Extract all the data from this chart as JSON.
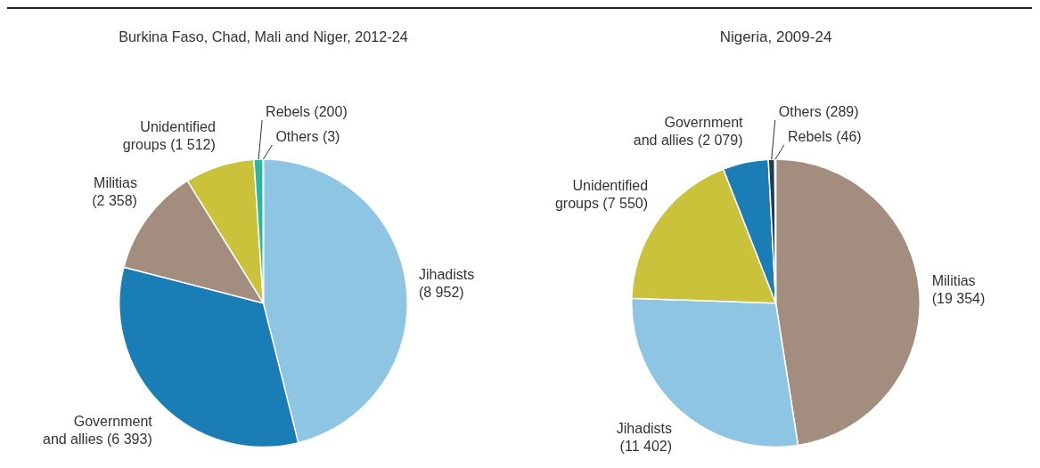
{
  "chart_data": [
    {
      "type": "pie",
      "title": "Burkina Faso, Chad, Mali and Niger, 2012-24",
      "categories": [
        "Jihadists (8 952)",
        "Government and allies (6 393)",
        "Militias (2 358)",
        "Unidentified groups (1 512)",
        "Rebels (200)",
        "Others (3)"
      ],
      "values": [
        8952,
        6393,
        2358,
        1512,
        200,
        3
      ],
      "colors": [
        "#8dc5e3",
        "#1a7db5",
        "#a38d7f",
        "#c9c23a",
        "#2ab5a0",
        "#1f3b57"
      ]
    },
    {
      "type": "pie",
      "title": "Nigeria, 2009-24",
      "categories": [
        "Militias (19 354)",
        "Jihadists (11 402)",
        "Unidentified groups (7 550)",
        "Government and allies (2 079)",
        "Others (289)",
        "Rebels (46)"
      ],
      "values": [
        19354,
        11402,
        7550,
        2079,
        289,
        46
      ],
      "colors": [
        "#a38d7f",
        "#8dc5e3",
        "#c9c23a",
        "#1a7db5",
        "#1f3b57",
        "#2ab5a0"
      ]
    }
  ]
}
